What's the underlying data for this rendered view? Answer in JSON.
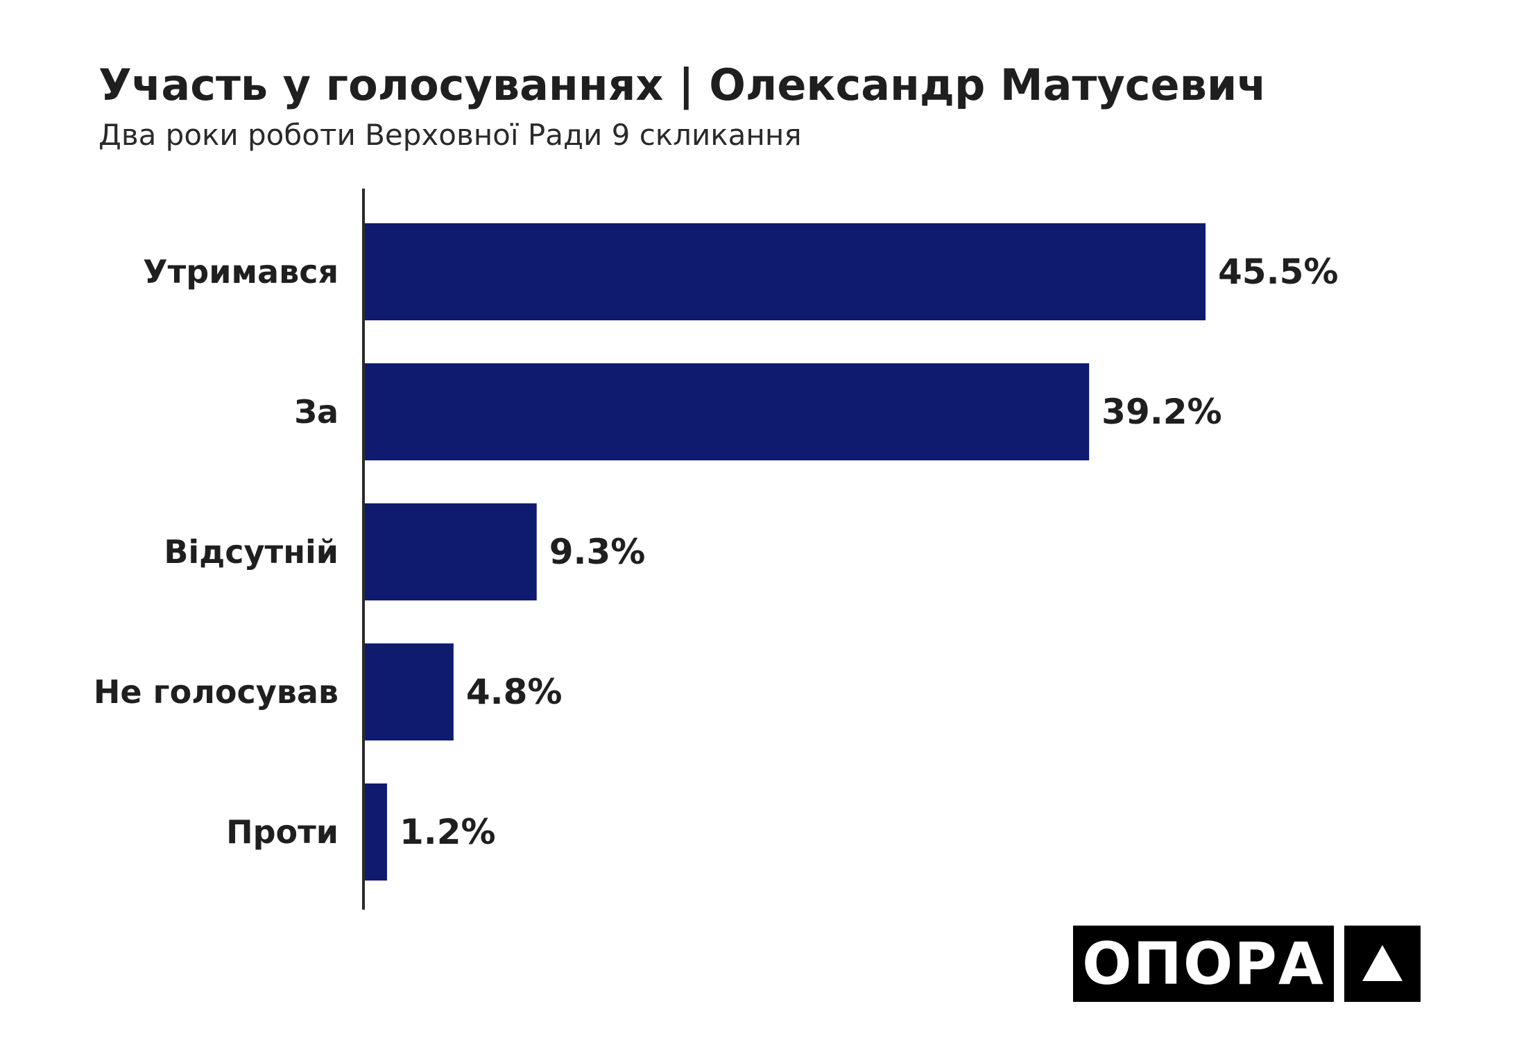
{
  "header": {
    "title": "Участь у голосуваннях | Олександр Матусевич",
    "subtitle": "Два роки роботи Верховної Ради 9 скликання"
  },
  "chart_data": {
    "type": "bar",
    "orientation": "horizontal",
    "categories": [
      "Утримався",
      "За",
      "Відсутній",
      "Не голосував",
      "Проти"
    ],
    "values": [
      45.5,
      39.2,
      9.3,
      4.8,
      1.2
    ],
    "data_labels": [
      "45.5%",
      "39.2%",
      "9.3%",
      "4.8%",
      "1.2%"
    ],
    "unit": "%",
    "xlim": [
      0,
      45.5
    ],
    "bar_color": "#0e1b6f",
    "grid": false,
    "legend": "none"
  },
  "logo": {
    "text": "ОПОРА",
    "mark_icon": "triangle-icon"
  }
}
